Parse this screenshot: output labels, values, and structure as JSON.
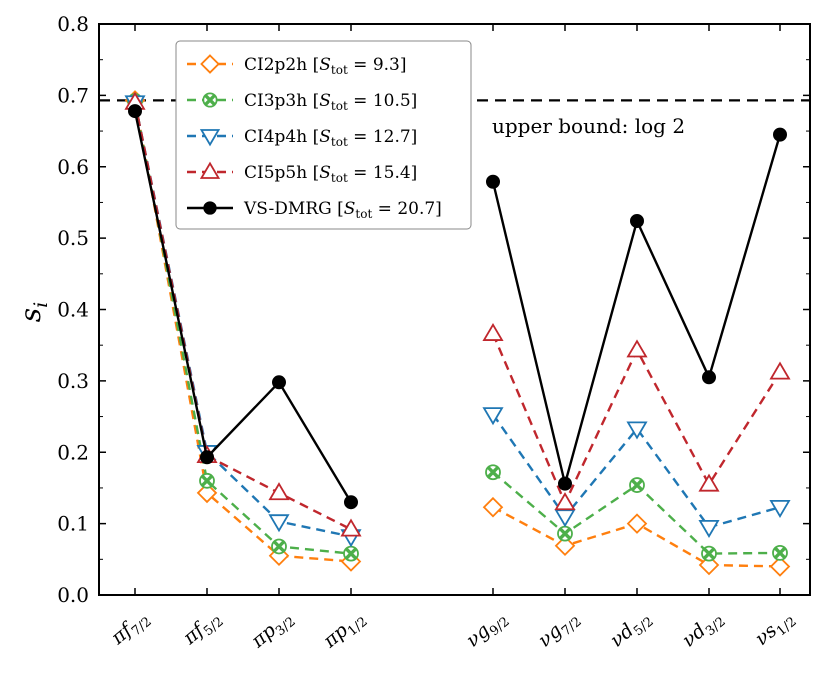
{
  "chart_data": {
    "type": "line",
    "ylabel": "s_i",
    "ylim": [
      0,
      0.8
    ],
    "yticks": [
      "0.0",
      "0.1",
      "0.2",
      "0.3",
      "0.4",
      "0.5",
      "0.6",
      "0.7",
      "0.8"
    ],
    "categories": [
      "πf7/2",
      "πf5/2",
      "πp3/2",
      "πp1/2",
      "νg9/2",
      "νg7/2",
      "νd5/2",
      "νd3/2",
      "νs1/2"
    ],
    "category_labels": [
      {
        "main": "πf",
        "sub": "7/2"
      },
      {
        "main": "πf",
        "sub": "5/2"
      },
      {
        "main": "πp",
        "sub": "3/2"
      },
      {
        "main": "πp",
        "sub": "1/2"
      },
      {
        "main": "νg",
        "sub": "9/2"
      },
      {
        "main": "νg",
        "sub": "7/2"
      },
      {
        "main": "νd",
        "sub": "5/2"
      },
      {
        "main": "νd",
        "sub": "3/2"
      },
      {
        "main": "νs",
        "sub": "1/2"
      }
    ],
    "groups": [
      [
        0,
        1,
        2,
        3
      ],
      [
        4,
        5,
        6,
        7,
        8
      ]
    ],
    "series": [
      {
        "name": "CI2p2h [Stot = 9.3]",
        "label_main": "CI2p2h ",
        "label_s": "S",
        "label_sub": "tot",
        "label_val": " = 9.3]",
        "color": "#ff7f0e",
        "marker": "diamond",
        "dash": true,
        "values": [
          0.693,
          0.143,
          0.055,
          0.047,
          0.123,
          0.069,
          0.1,
          0.042,
          0.04
        ]
      },
      {
        "name": "CI3p3h [Stot = 10.5]",
        "label_main": "CI3p3h ",
        "label_s": "S",
        "label_sub": "tot",
        "label_val": " = 10.5]",
        "color": "#4daf4a",
        "marker": "x-circle",
        "dash": true,
        "values": [
          0.692,
          0.16,
          0.068,
          0.058,
          0.172,
          0.086,
          0.154,
          0.058,
          0.059
        ]
      },
      {
        "name": "CI4p4h [Stot = 12.7]",
        "label_main": "CI4p4h ",
        "label_s": "S",
        "label_sub": "tot",
        "label_val": " = 12.7]",
        "color": "#1f77b4",
        "marker": "triangle-down",
        "dash": true,
        "values": [
          0.69,
          0.2,
          0.103,
          0.082,
          0.253,
          0.11,
          0.233,
          0.095,
          0.123
        ]
      },
      {
        "name": "CI5p5h [Stot = 15.4]",
        "label_main": "CI5p5h ",
        "label_s": "S",
        "label_sub": "tot",
        "label_val": " = 15.4]",
        "color": "#c0272d",
        "marker": "triangle-up",
        "dash": true,
        "values": [
          0.69,
          0.195,
          0.143,
          0.092,
          0.366,
          0.129,
          0.343,
          0.155,
          0.312
        ]
      },
      {
        "name": "VS-DMRG [Stot = 20.7]",
        "label_main": "VS-DMRG ",
        "label_s": "S",
        "label_sub": "tot",
        "label_val": " = 20.7]",
        "color": "#000000",
        "marker": "circle",
        "dash": false,
        "values": [
          0.678,
          0.193,
          0.298,
          0.13,
          0.579,
          0.156,
          0.524,
          0.305,
          0.645
        ]
      }
    ],
    "hline": {
      "y": 0.693,
      "label": "upper bound: log 2"
    },
    "legend": "top-left",
    "grid": false
  }
}
